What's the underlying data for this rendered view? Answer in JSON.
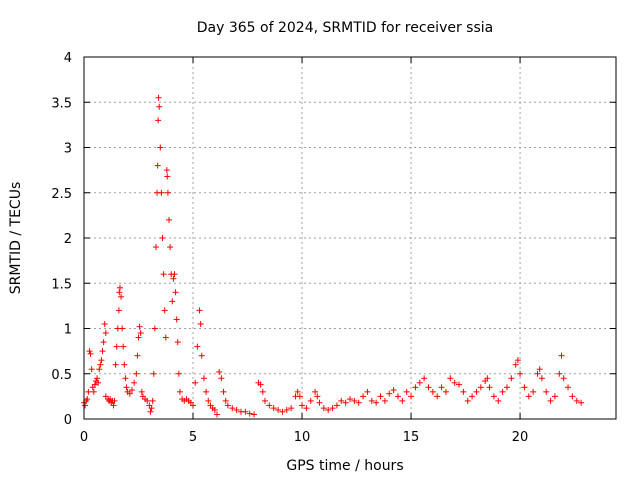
{
  "chart_data": {
    "type": "scatter",
    "title": "Day 365 of 2024, SRMTID for receiver ssia",
    "xlabel": "GPS time / hours",
    "ylabel": "SRMTID / TECUs",
    "xlim": [
      0,
      24.4
    ],
    "ylim": [
      0,
      4
    ],
    "xticks": [
      0,
      5,
      10,
      15,
      20
    ],
    "xtick_labels": [
      "0",
      "5",
      "10",
      "15",
      "20"
    ],
    "yticks": [
      0,
      0.5,
      1,
      1.5,
      2,
      2.5,
      3,
      3.5,
      4
    ],
    "ytick_labels": [
      "0",
      "0.5",
      "1",
      "1.5",
      "2",
      "2.5",
      "3",
      "3.5",
      "4"
    ],
    "grid": true,
    "marker": "+",
    "series": [
      {
        "name": "SRMTID",
        "color": "#ff0000",
        "points": [
          [
            0.0,
            0.18
          ],
          [
            0.05,
            0.15
          ],
          [
            0.1,
            0.2
          ],
          [
            0.15,
            0.22
          ],
          [
            0.2,
            0.3
          ],
          [
            0.25,
            0.75
          ],
          [
            0.3,
            0.72
          ],
          [
            0.35,
            0.55
          ],
          [
            0.4,
            0.35
          ],
          [
            0.45,
            0.3
          ],
          [
            0.5,
            0.38
          ],
          [
            0.55,
            0.42
          ],
          [
            0.6,
            0.45
          ],
          [
            0.65,
            0.4
          ],
          [
            0.7,
            0.55
          ],
          [
            0.75,
            0.6
          ],
          [
            0.8,
            0.65
          ],
          [
            0.85,
            0.75
          ],
          [
            0.9,
            0.85
          ],
          [
            0.95,
            1.05
          ],
          [
            1.0,
            0.95
          ],
          [
            1.0,
            0.25
          ],
          [
            1.1,
            0.22
          ],
          [
            1.15,
            0.2
          ],
          [
            1.2,
            0.22
          ],
          [
            1.25,
            0.18
          ],
          [
            1.3,
            0.2
          ],
          [
            1.35,
            0.15
          ],
          [
            1.4,
            0.2
          ],
          [
            1.45,
            0.6
          ],
          [
            1.5,
            0.8
          ],
          [
            1.55,
            1.0
          ],
          [
            1.6,
            1.2
          ],
          [
            1.62,
            1.4
          ],
          [
            1.65,
            1.45
          ],
          [
            1.7,
            1.35
          ],
          [
            1.75,
            1.0
          ],
          [
            1.8,
            0.8
          ],
          [
            1.85,
            0.6
          ],
          [
            1.9,
            0.45
          ],
          [
            1.95,
            0.35
          ],
          [
            2.0,
            0.3
          ],
          [
            2.1,
            0.28
          ],
          [
            2.2,
            0.32
          ],
          [
            2.3,
            0.4
          ],
          [
            2.4,
            0.5
          ],
          [
            2.45,
            0.7
          ],
          [
            2.5,
            0.9
          ],
          [
            2.55,
            1.02
          ],
          [
            2.6,
            0.95
          ],
          [
            2.65,
            0.3
          ],
          [
            2.7,
            0.25
          ],
          [
            2.8,
            0.22
          ],
          [
            2.9,
            0.2
          ],
          [
            3.0,
            0.15
          ],
          [
            3.05,
            0.08
          ],
          [
            3.1,
            0.12
          ],
          [
            3.15,
            0.2
          ],
          [
            3.2,
            0.5
          ],
          [
            3.25,
            1.0
          ],
          [
            3.3,
            1.9
          ],
          [
            3.35,
            2.5
          ],
          [
            3.38,
            2.8
          ],
          [
            3.4,
            3.3
          ],
          [
            3.42,
            3.55
          ],
          [
            3.45,
            3.45
          ],
          [
            3.5,
            3.0
          ],
          [
            3.55,
            2.5
          ],
          [
            3.6,
            2.0
          ],
          [
            3.65,
            1.6
          ],
          [
            3.7,
            1.2
          ],
          [
            3.75,
            0.9
          ],
          [
            3.8,
            2.75
          ],
          [
            3.82,
            2.68
          ],
          [
            3.85,
            2.5
          ],
          [
            3.9,
            2.2
          ],
          [
            3.95,
            1.9
          ],
          [
            4.0,
            1.6
          ],
          [
            4.05,
            1.3
          ],
          [
            4.1,
            1.55
          ],
          [
            4.15,
            1.6
          ],
          [
            4.2,
            1.4
          ],
          [
            4.25,
            1.1
          ],
          [
            4.3,
            0.85
          ],
          [
            4.35,
            0.5
          ],
          [
            4.4,
            0.3
          ],
          [
            4.5,
            0.22
          ],
          [
            4.6,
            0.2
          ],
          [
            4.7,
            0.22
          ],
          [
            4.8,
            0.2
          ],
          [
            4.9,
            0.18
          ],
          [
            5.0,
            0.15
          ],
          [
            5.1,
            0.4
          ],
          [
            5.2,
            0.8
          ],
          [
            5.3,
            1.2
          ],
          [
            5.35,
            1.05
          ],
          [
            5.4,
            0.7
          ],
          [
            5.5,
            0.45
          ],
          [
            5.6,
            0.3
          ],
          [
            5.7,
            0.2
          ],
          [
            5.8,
            0.15
          ],
          [
            5.9,
            0.12
          ],
          [
            6.0,
            0.1
          ],
          [
            6.1,
            0.05
          ],
          [
            6.2,
            0.52
          ],
          [
            6.3,
            0.45
          ],
          [
            6.4,
            0.3
          ],
          [
            6.5,
            0.2
          ],
          [
            6.6,
            0.15
          ],
          [
            6.8,
            0.12
          ],
          [
            7.0,
            0.1
          ],
          [
            7.2,
            0.08
          ],
          [
            7.4,
            0.08
          ],
          [
            7.6,
            0.06
          ],
          [
            7.8,
            0.05
          ],
          [
            8.0,
            0.4
          ],
          [
            8.1,
            0.38
          ],
          [
            8.2,
            0.3
          ],
          [
            8.3,
            0.2
          ],
          [
            8.5,
            0.15
          ],
          [
            8.7,
            0.12
          ],
          [
            8.9,
            0.1
          ],
          [
            9.1,
            0.08
          ],
          [
            9.3,
            0.1
          ],
          [
            9.5,
            0.12
          ],
          [
            9.7,
            0.25
          ],
          [
            9.8,
            0.3
          ],
          [
            9.9,
            0.25
          ],
          [
            10.0,
            0.15
          ],
          [
            10.2,
            0.12
          ],
          [
            10.4,
            0.2
          ],
          [
            10.6,
            0.3
          ],
          [
            10.7,
            0.25
          ],
          [
            10.8,
            0.18
          ],
          [
            11.0,
            0.12
          ],
          [
            11.2,
            0.1
          ],
          [
            11.4,
            0.12
          ],
          [
            11.6,
            0.15
          ],
          [
            11.8,
            0.2
          ],
          [
            12.0,
            0.18
          ],
          [
            12.2,
            0.22
          ],
          [
            12.4,
            0.2
          ],
          [
            12.6,
            0.18
          ],
          [
            12.8,
            0.25
          ],
          [
            13.0,
            0.3
          ],
          [
            13.2,
            0.2
          ],
          [
            13.4,
            0.18
          ],
          [
            13.6,
            0.25
          ],
          [
            13.8,
            0.2
          ],
          [
            14.0,
            0.28
          ],
          [
            14.2,
            0.32
          ],
          [
            14.4,
            0.25
          ],
          [
            14.6,
            0.2
          ],
          [
            14.8,
            0.3
          ],
          [
            15.0,
            0.25
          ],
          [
            15.2,
            0.35
          ],
          [
            15.4,
            0.4
          ],
          [
            15.6,
            0.45
          ],
          [
            15.8,
            0.35
          ],
          [
            16.0,
            0.3
          ],
          [
            16.2,
            0.25
          ],
          [
            16.4,
            0.35
          ],
          [
            16.6,
            0.3
          ],
          [
            16.8,
            0.45
          ],
          [
            17.0,
            0.4
          ],
          [
            17.2,
            0.38
          ],
          [
            17.4,
            0.3
          ],
          [
            17.6,
            0.2
          ],
          [
            17.8,
            0.25
          ],
          [
            18.0,
            0.3
          ],
          [
            18.2,
            0.35
          ],
          [
            18.4,
            0.42
          ],
          [
            18.5,
            0.45
          ],
          [
            18.6,
            0.35
          ],
          [
            18.8,
            0.25
          ],
          [
            19.0,
            0.2
          ],
          [
            19.2,
            0.3
          ],
          [
            19.4,
            0.35
          ],
          [
            19.6,
            0.45
          ],
          [
            19.8,
            0.6
          ],
          [
            19.9,
            0.65
          ],
          [
            20.0,
            0.5
          ],
          [
            20.2,
            0.35
          ],
          [
            20.4,
            0.25
          ],
          [
            20.6,
            0.3
          ],
          [
            20.8,
            0.5
          ],
          [
            20.9,
            0.55
          ],
          [
            21.0,
            0.45
          ],
          [
            21.2,
            0.3
          ],
          [
            21.4,
            0.2
          ],
          [
            21.6,
            0.25
          ],
          [
            21.8,
            0.5
          ],
          [
            21.9,
            0.7
          ],
          [
            22.0,
            0.45
          ],
          [
            22.2,
            0.35
          ],
          [
            22.4,
            0.25
          ],
          [
            22.6,
            0.2
          ],
          [
            22.8,
            0.18
          ]
        ]
      }
    ]
  }
}
